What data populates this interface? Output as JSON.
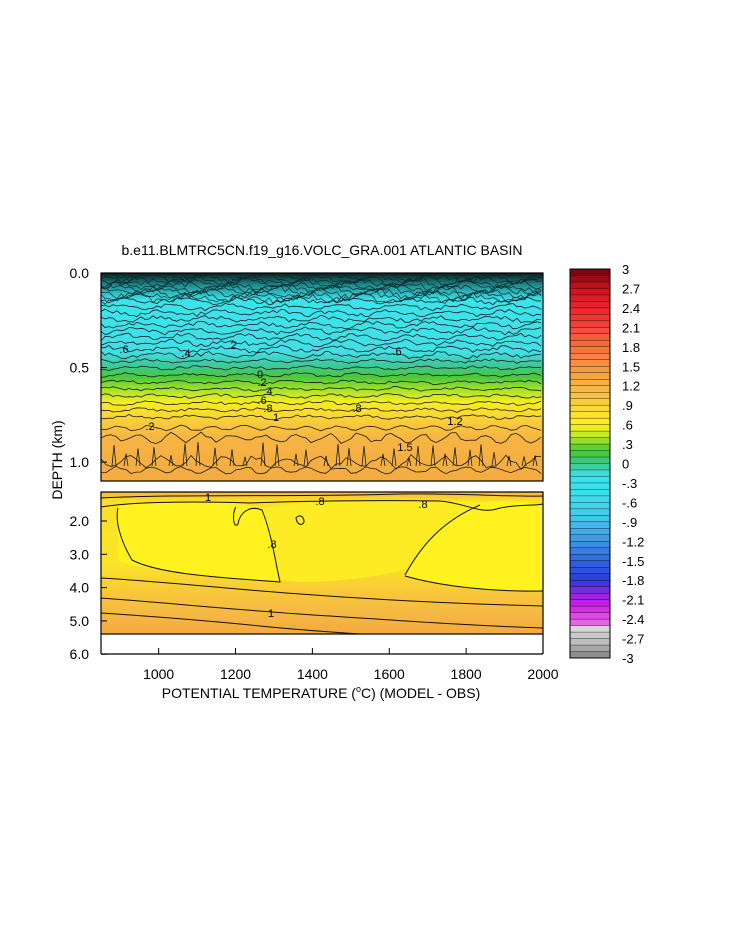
{
  "chart_data": {
    "type": "heatmap",
    "title": "b.e11.BLMTRC5CN.f19_g16.VOLC_GRA.001 ATLANTIC BASIN",
    "xlabel": "POTENTIAL TEMPERATURE (°C) (MODEL - OBS)",
    "xlabel_parts": {
      "before": "POTENTIAL TEMPERATURE (",
      "sup": "o",
      "after": "C) (MODEL - OBS)"
    },
    "ylabel": "DEPTH (km)",
    "xlim": [
      850,
      2000
    ],
    "x_ticks": [
      "1000",
      "1200",
      "1400",
      "1600",
      "1800",
      "2000"
    ],
    "x_tick_values": [
      1000,
      1200,
      1400,
      1600,
      1800,
      2000
    ],
    "top_panel": {
      "ylim": [
        0.0,
        1.1
      ],
      "y_ticks": [
        "0.0",
        "0.5",
        "1.0"
      ],
      "y_tick_values": [
        0.0,
        0.5,
        1.0
      ],
      "description_layers": [
        {
          "depth": [
            0.0,
            0.1
          ],
          "value": -0.6
        },
        {
          "depth": [
            0.1,
            0.3
          ],
          "value": -0.6
        },
        {
          "depth": [
            0.3,
            0.45
          ],
          "value": -0.1
        },
        {
          "depth": [
            0.45,
            0.62
          ],
          "value": 0.5
        },
        {
          "depth": [
            0.62,
            0.8
          ],
          "value": 0.9
        },
        {
          "depth": [
            0.8,
            1.1
          ],
          "value": 1.3
        }
      ],
      "contour_labels": [
        ".6",
        ".4",
        ".2",
        ".6",
        ".8",
        "1",
        ".2",
        "0",
        ".2",
        ".4",
        ".6",
        ".8",
        "1.2",
        "1.5"
      ]
    },
    "bottom_panel": {
      "ylim": [
        1.1,
        6.0
      ],
      "y_ticks": [
        "2.0",
        "3.0",
        "4.0",
        "5.0",
        "6.0"
      ],
      "y_tick_values": [
        2.0,
        3.0,
        4.0,
        5.0,
        6.0
      ],
      "contour_labels": [
        "1",
        ".8",
        ".8",
        ".8",
        "1"
      ]
    },
    "colorbar": {
      "labels": [
        "3",
        "2.7",
        "2.4",
        "2.1",
        "1.8",
        "1.5",
        "1.2",
        ".9",
        ".6",
        ".3",
        "0",
        "-.3",
        "-.6",
        "-.9",
        "-1.2",
        "-1.5",
        "-1.8",
        "-2.1",
        "-2.4",
        "-2.7",
        "-3"
      ],
      "values": [
        3,
        2.7,
        2.4,
        2.1,
        1.8,
        1.5,
        1.2,
        0.9,
        0.6,
        0.3,
        0,
        -0.3,
        -0.6,
        -0.9,
        -1.2,
        -1.5,
        -1.8,
        -2.1,
        -2.4,
        -2.7,
        -3
      ],
      "range": [
        -3,
        3
      ],
      "interval": 0.1
    },
    "colors": {
      "deep_red": "#b0101a",
      "red": "#e8262e",
      "orange": "#f6a23c",
      "yellow": "#fff21e",
      "green": "#3ec832",
      "cyan": "#3ae4ec",
      "blue": "#2a46e6",
      "magenta": "#d21ee6",
      "light_gray": "#d2d2d2",
      "gray": "#8a8a8a"
    }
  }
}
